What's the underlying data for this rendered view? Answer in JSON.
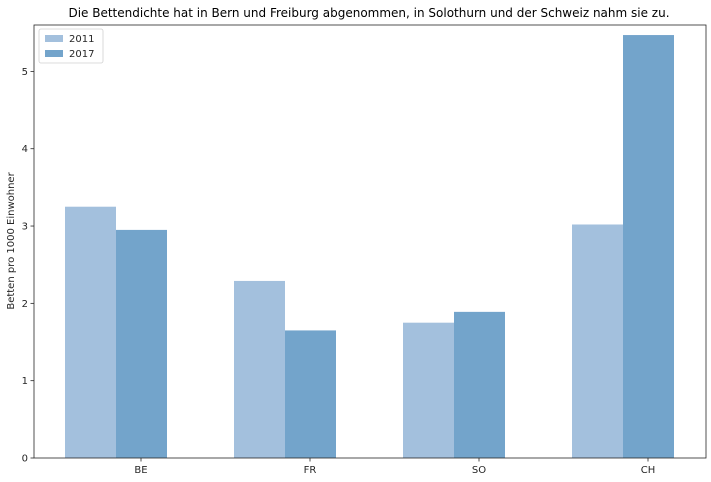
{
  "chart_data": {
    "type": "bar",
    "title": "Die Bettendichte hat in Bern und Freiburg abgenommen, in Solothurn und der Schweiz nahm sie zu.",
    "xlabel": "",
    "ylabel": "Betten pro 1000 Einwohner",
    "categories": [
      "BE",
      "FR",
      "SO",
      "CH"
    ],
    "series": [
      {
        "name": "2011",
        "values": [
          3.25,
          2.29,
          1.75,
          3.02
        ],
        "color": "#a3c0dd"
      },
      {
        "name": "2017",
        "values": [
          2.95,
          1.65,
          1.89,
          5.47
        ],
        "color": "#73a4cb"
      }
    ],
    "ylim": [
      0,
      5.6
    ],
    "yticks": [
      0,
      1,
      2,
      3,
      4,
      5
    ],
    "grid": false,
    "legend_position": "top-left"
  }
}
